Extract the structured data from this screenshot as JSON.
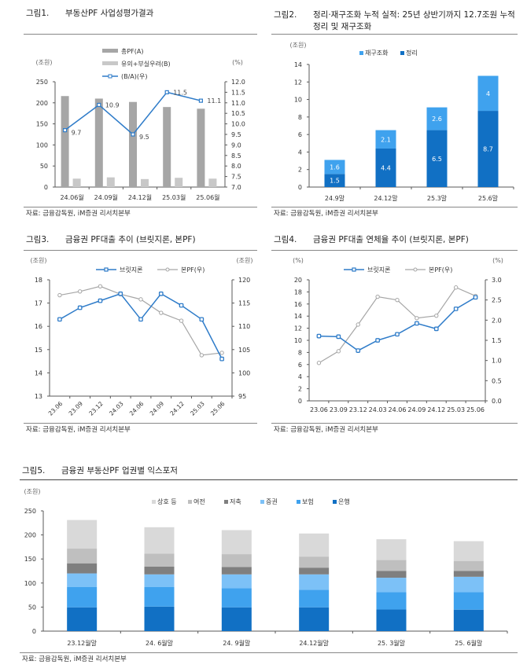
{
  "source_text": "자료: 금융감독원, iM증권 리서치본부",
  "chart_data": [
    {
      "id": "fig1",
      "type": "bar",
      "title_num": "그림1.",
      "title": "부동산PF 사업성평가결과",
      "categories": [
        "24.06월",
        "24.09월",
        "24.12월",
        "25.03월",
        "25.06월"
      ],
      "ylabel": "(조원)",
      "ylabel_right": "(%)",
      "ylim": [
        0,
        250
      ],
      "yticks": [
        0,
        50,
        100,
        150,
        200,
        250
      ],
      "ylim_right": [
        7.0,
        12.0
      ],
      "yticks_right": [
        "7.0",
        "7.5",
        "8.0",
        "8.5",
        "9.0",
        "9.5",
        "10.0",
        "10.5",
        "11.0",
        "11.5",
        "12.0"
      ],
      "series": [
        {
          "name": "총PF(A)",
          "kind": "bar",
          "color": "#a6a6a6",
          "values": [
            216,
            210,
            202,
            190,
            186
          ]
        },
        {
          "name": "유의+부실우려(B)",
          "kind": "bar",
          "color": "#c8c8c8",
          "values": [
            20,
            23,
            19,
            22,
            20
          ]
        },
        {
          "name": "(B/A)(우)",
          "kind": "line",
          "axis": "right",
          "color": "#2f7cc9",
          "values": [
            9.7,
            10.9,
            9.5,
            11.5,
            11.1
          ],
          "labels": [
            "9.7",
            "10.9",
            "9.5",
            "11.5",
            "11.1"
          ]
        }
      ]
    },
    {
      "id": "fig2",
      "type": "bar",
      "stacked": true,
      "title_num": "그림2.",
      "title": "정리·재구조화 누적 실적: 25년 상반기까지 12.7조원 누적 정리 및 재구조화",
      "categories": [
        "24.9말",
        "24.12말",
        "25.3말",
        "25.6말"
      ],
      "ylabel": "(조원)",
      "ylim": [
        0,
        14
      ],
      "yticks": [
        0,
        2,
        4,
        6,
        8,
        10,
        12,
        14
      ],
      "series": [
        {
          "name": "정리",
          "color": "#1170c4",
          "values": [
            1.5,
            4.4,
            6.5,
            8.7
          ],
          "labels": [
            "1.5",
            "4.4",
            "6.5",
            "8.7"
          ]
        },
        {
          "name": "재구조화",
          "color": "#3fa2ee",
          "values": [
            1.6,
            2.1,
            2.6,
            4.0
          ],
          "labels": [
            "1.6",
            "2.1",
            "2.6",
            "4"
          ]
        }
      ],
      "legend_order": [
        "재구조화",
        "정리"
      ]
    },
    {
      "id": "fig3",
      "type": "line",
      "title_num": "그림3.",
      "title": "금융권 PF대출 추이 (브릿지론, 본PF)",
      "categories": [
        "23.06",
        "23.09",
        "23.12",
        "24.03",
        "24.06",
        "24.09",
        "24.12",
        "25.03",
        "25.06"
      ],
      "ylabel": "(조원)",
      "ylabel_right": "(조원)",
      "ylim": [
        13,
        18
      ],
      "yticks": [
        13,
        14,
        15,
        16,
        17,
        18
      ],
      "ylim_right": [
        95,
        120
      ],
      "yticks_right": [
        95,
        100,
        105,
        110,
        115,
        120
      ],
      "series": [
        {
          "name": "브릿지론",
          "axis": "left",
          "color": "#2f7cc9",
          "values": [
            16.3,
            16.8,
            17.1,
            17.4,
            16.3,
            17.4,
            16.9,
            16.3,
            14.6
          ]
        },
        {
          "name": "본PF(우)",
          "axis": "right",
          "color": "#a6a6a6",
          "values": [
            116.7,
            117.5,
            118.6,
            116.9,
            115.8,
            112.9,
            111.2,
            103.8,
            104.3
          ]
        }
      ]
    },
    {
      "id": "fig4",
      "type": "line",
      "title_num": "그림4.",
      "title": "금융권 PF대출 연체율 추이 (브릿지론, 본PF)",
      "categories": [
        "23.06",
        "23.09",
        "23.12",
        "24.03",
        "24.06",
        "24.09",
        "24.12",
        "25.03",
        "25.06"
      ],
      "ylabel": "(%)",
      "ylabel_right": "(%)",
      "ylim": [
        0,
        20
      ],
      "yticks": [
        0,
        2,
        4,
        6,
        8,
        10,
        12,
        14,
        16,
        18,
        20
      ],
      "ylim_right": [
        0,
        3.0
      ],
      "yticks_right": [
        "0.0",
        "0.5",
        "1.0",
        "1.5",
        "2.0",
        "2.5",
        "3.0"
      ],
      "series": [
        {
          "name": "브릿지론",
          "axis": "left",
          "color": "#2f7cc9",
          "values": [
            10.7,
            10.6,
            8.3,
            10.0,
            11.0,
            12.8,
            11.9,
            15.2,
            17.1
          ]
        },
        {
          "name": "본PF(우)",
          "axis": "right",
          "color": "#a6a6a6",
          "values": [
            0.94,
            1.23,
            1.89,
            2.58,
            2.5,
            2.05,
            2.11,
            2.81,
            2.6
          ]
        }
      ]
    },
    {
      "id": "fig5",
      "type": "bar",
      "stacked": true,
      "title_num": "그림5.",
      "title": "금융권 부동산PF 업권별 익스포저",
      "categories": [
        "23.12월말",
        "24. 6월말",
        "24. 9월말",
        "24.12월말",
        "25. 3월말",
        "25. 6월말"
      ],
      "ylabel": "(조원)",
      "ylim": [
        0,
        250
      ],
      "yticks": [
        0,
        50,
        100,
        150,
        200,
        250
      ],
      "series": [
        {
          "name": "은행",
          "color": "#1170c4",
          "values": [
            49.5,
            51,
            49.5,
            49.5,
            45,
            44.6
          ]
        },
        {
          "name": "보험",
          "color": "#3fa2ee",
          "values": [
            42,
            40.5,
            39.5,
            36.5,
            36,
            36.4
          ]
        },
        {
          "name": "증권",
          "color": "#7cc1f7",
          "values": [
            28.5,
            26.5,
            29,
            32,
            30,
            32
          ]
        },
        {
          "name": "저축",
          "color": "#7f7f7f",
          "values": [
            21,
            16,
            15.5,
            14,
            14,
            12
          ]
        },
        {
          "name": "여전",
          "color": "#bfbfbf",
          "values": [
            30.5,
            27,
            26.5,
            23,
            22.8,
            21
          ]
        },
        {
          "name": "상호 등",
          "color": "#d9d9d9",
          "values": [
            59.5,
            55,
            50,
            48,
            43.2,
            41
          ]
        }
      ],
      "legend_order": [
        "상호 등",
        "여전",
        "저축",
        "증권",
        "보험",
        "은행"
      ]
    }
  ]
}
